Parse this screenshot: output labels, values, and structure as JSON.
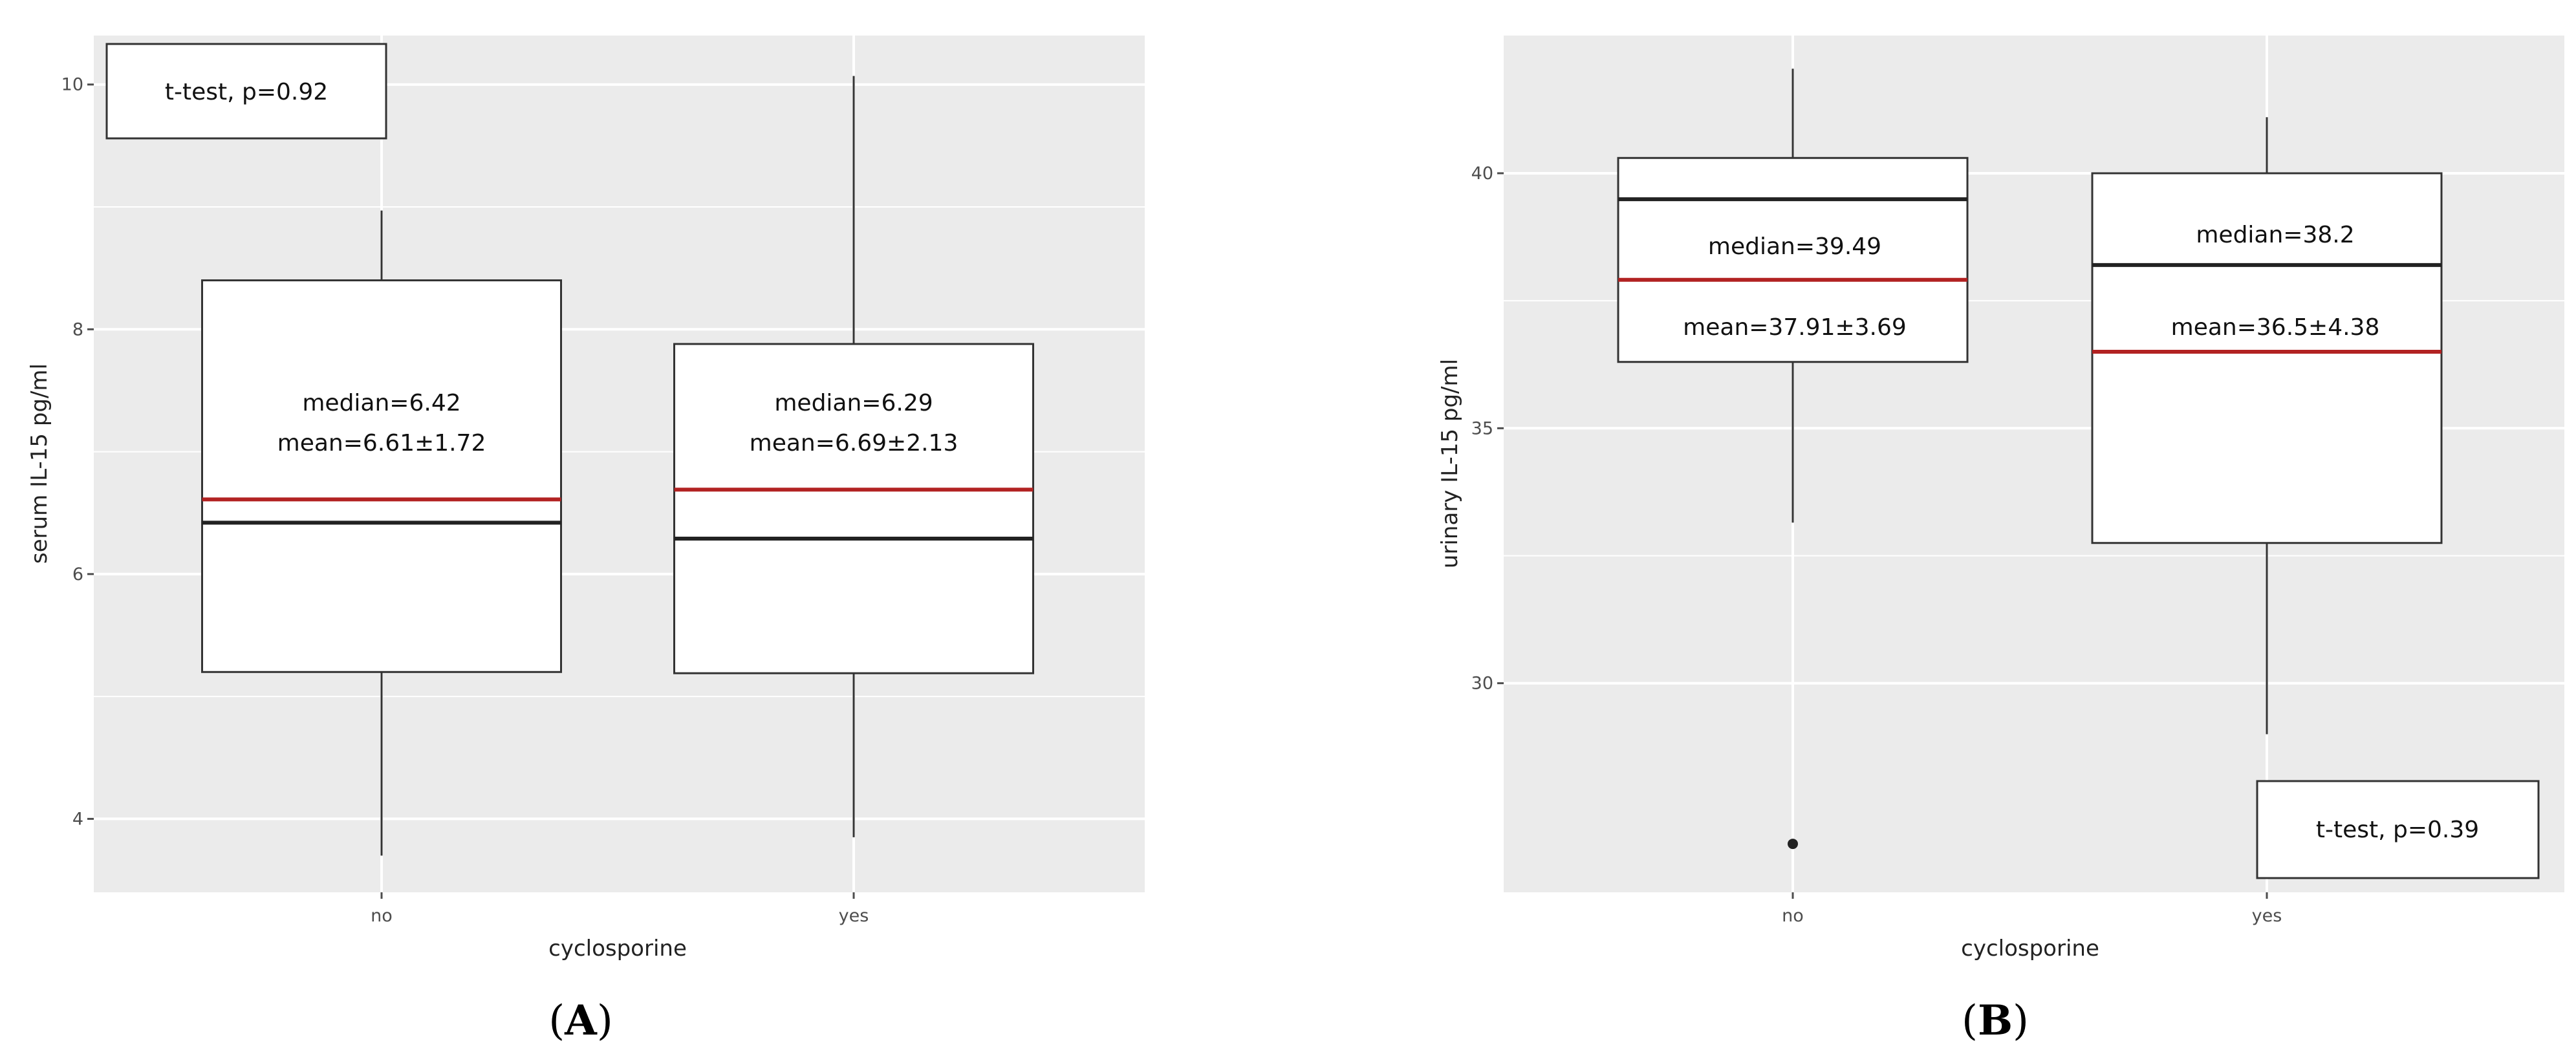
{
  "chart_data": [
    {
      "panel_label": "A",
      "type": "box",
      "xlabel": "cyclosporine",
      "ylabel": "serum IL-15 pg/ml",
      "categories": [
        "no",
        "yes"
      ],
      "ylim": [
        3.4,
        10.4
      ],
      "yticks": [
        4,
        6,
        8,
        10
      ],
      "boxes": [
        {
          "category": "no",
          "whisker_low": 3.7,
          "q1": 5.2,
          "median": 6.42,
          "mean": 6.61,
          "q3": 8.4,
          "whisker_high": 8.97,
          "outliers": []
        },
        {
          "category": "yes",
          "whisker_low": 3.85,
          "q1": 5.19,
          "median": 6.29,
          "mean": 6.69,
          "q3": 7.88,
          "whisker_high": 10.07,
          "outliers": []
        }
      ],
      "annotations": {
        "test_label": "t-test, p=0.92",
        "box_labels": [
          {
            "median_text": "median=6.42",
            "mean_text": "mean=6.61±1.72"
          },
          {
            "median_text": "median=6.29",
            "mean_text": "mean=6.69±2.13"
          }
        ]
      },
      "colors": {
        "median_line": "#222222",
        "mean_line": "#b22222",
        "panel_bg": "#ebebeb",
        "grid": "#ffffff"
      },
      "grid": true,
      "legend": "none"
    },
    {
      "panel_label": "B",
      "type": "box",
      "xlabel": "cyclosporine",
      "ylabel": "urinary IL-15 pg/ml",
      "categories": [
        "no",
        "yes"
      ],
      "ylim": [
        25.9,
        42.7
      ],
      "yticks": [
        30,
        35,
        40
      ],
      "boxes": [
        {
          "category": "no",
          "whisker_low": 33.15,
          "q1": 36.3,
          "median": 39.49,
          "mean": 37.91,
          "q3": 40.3,
          "whisker_high": 42.05,
          "outliers": [
            26.85
          ]
        },
        {
          "category": "yes",
          "whisker_low": 29.0,
          "q1": 32.75,
          "median": 38.2,
          "mean": 36.5,
          "q3": 40.0,
          "whisker_high": 41.1,
          "outliers": []
        }
      ],
      "annotations": {
        "test_label": "t-test, p=0.39",
        "box_labels": [
          {
            "median_text": "median=39.49",
            "mean_text": "mean=37.91±3.69"
          },
          {
            "median_text": "median=38.2",
            "mean_text": "mean=36.5±4.38"
          }
        ]
      },
      "colors": {
        "median_line": "#222222",
        "mean_line": "#b22222",
        "panel_bg": "#ebebeb",
        "grid": "#ffffff"
      },
      "grid": true,
      "legend": "none"
    }
  ]
}
